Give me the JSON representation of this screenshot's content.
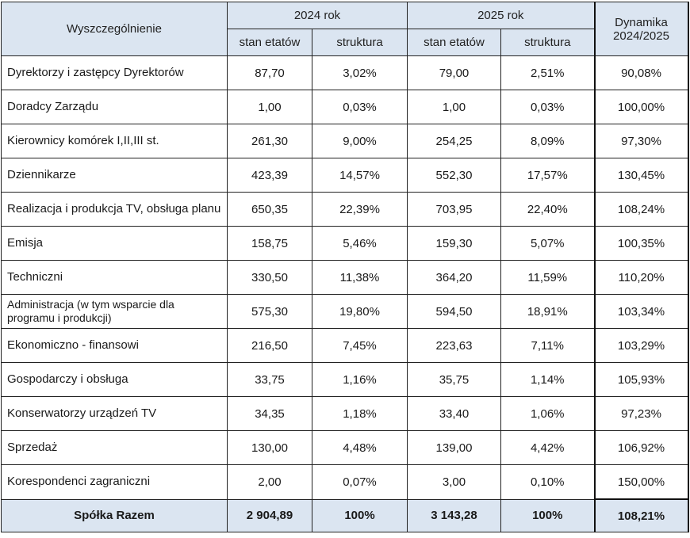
{
  "header": {
    "col_name": "Wyszczególnienie",
    "year_2024": "2024 rok",
    "year_2025": "2025 rok",
    "dynamics_line1": "Dynamika",
    "dynamics_line2": "2024/2025",
    "sub_stan": "stan etatów",
    "sub_struktura": "struktura"
  },
  "rows": [
    {
      "name": "Dyrektorzy i zastępcy Dyrektorów",
      "stan_2024": "87,70",
      "struktura_2024": "3,02%",
      "stan_2025": "79,00",
      "struktura_2025": "2,51%",
      "dynamika": "90,08%"
    },
    {
      "name": "Doradcy Zarządu",
      "stan_2024": "1,00",
      "struktura_2024": "0,03%",
      "stan_2025": "1,00",
      "struktura_2025": "0,03%",
      "dynamika": "100,00%"
    },
    {
      "name": "Kierownicy komórek I,II,III st.",
      "stan_2024": "261,30",
      "struktura_2024": "9,00%",
      "stan_2025": "254,25",
      "struktura_2025": "8,09%",
      "dynamika": "97,30%"
    },
    {
      "name": "Dziennikarze",
      "stan_2024": "423,39",
      "struktura_2024": "14,57%",
      "stan_2025": "552,30",
      "struktura_2025": "17,57%",
      "dynamika": "130,45%"
    },
    {
      "name": "Realizacja i produkcja TV, obsługa planu",
      "stan_2024": "650,35",
      "struktura_2024": "22,39%",
      "stan_2025": "703,95",
      "struktura_2025": "22,40%",
      "dynamika": "108,24%"
    },
    {
      "name": "Emisja",
      "stan_2024": "158,75",
      "struktura_2024": "5,46%",
      "stan_2025": "159,30",
      "struktura_2025": "5,07%",
      "dynamika": "100,35%"
    },
    {
      "name": "Techniczni",
      "stan_2024": "330,50",
      "struktura_2024": "11,38%",
      "stan_2025": "364,20",
      "struktura_2025": "11,59%",
      "dynamika": "110,20%"
    },
    {
      "name": "Administracja (w tym wsparcie dla programu i produkcji)",
      "stan_2024": "575,30",
      "struktura_2024": "19,80%",
      "stan_2025": "594,50",
      "struktura_2025": "18,91%",
      "dynamika": "103,34%"
    },
    {
      "name": "Ekonomiczno - finansowi",
      "stan_2024": "216,50",
      "struktura_2024": "7,45%",
      "stan_2025": "223,63",
      "struktura_2025": "7,11%",
      "dynamika": "103,29%"
    },
    {
      "name": "Gospodarczy i obsługa",
      "stan_2024": "33,75",
      "struktura_2024": "1,16%",
      "stan_2025": "35,75",
      "struktura_2025": "1,14%",
      "dynamika": "105,93%"
    },
    {
      "name": "Konserwatorzy urządzeń TV",
      "stan_2024": "34,35",
      "struktura_2024": "1,18%",
      "stan_2025": "33,40",
      "struktura_2025": "1,06%",
      "dynamika": "97,23%"
    },
    {
      "name": "Sprzedaż",
      "stan_2024": "130,00",
      "struktura_2024": "4,48%",
      "stan_2025": "139,00",
      "struktura_2025": "4,42%",
      "dynamika": "106,92%"
    },
    {
      "name": "Korespondenci zagraniczni",
      "stan_2024": "2,00",
      "struktura_2024": "0,07%",
      "stan_2025": "3,00",
      "struktura_2025": "0,10%",
      "dynamika": "150,00%"
    }
  ],
  "total": {
    "name": "Spółka Razem",
    "stan_2024": "2 904,89",
    "struktura_2024": "100%",
    "stan_2025": "3 143,28",
    "struktura_2025": "100%",
    "dynamika": "108,21%"
  },
  "colors": {
    "header_bg": "#dbe5f1",
    "border": "#222222"
  }
}
